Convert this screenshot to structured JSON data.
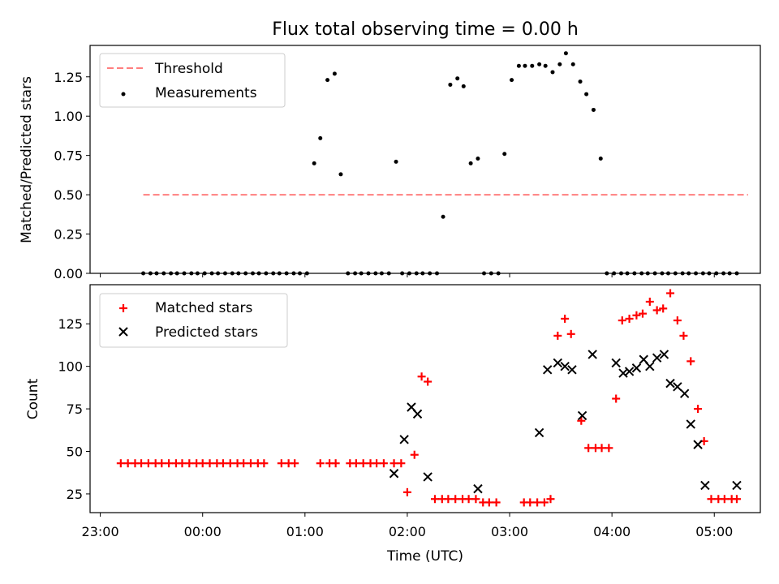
{
  "title": "Flux total observing time = 0.00 h",
  "colors": {
    "threshold": "#ff7f7f",
    "measurements": "#000000",
    "matched": "#ff0000",
    "predicted": "#000000"
  },
  "chart_data": [
    {
      "type": "scatter",
      "panel": "top",
      "ylabel": "Matched/Predicted stars",
      "ylim": [
        0,
        1.45
      ],
      "yticks": [
        0.0,
        0.25,
        0.5,
        0.75,
        1.0,
        1.25
      ],
      "yticklabels": [
        "0.00",
        "0.25",
        "0.50",
        "0.75",
        "1.00",
        "1.25"
      ],
      "xlim": [
        -0.1,
        6.45
      ],
      "legend": {
        "placement": "top-left"
      },
      "series": [
        {
          "name": "Threshold",
          "kind": "line",
          "style": "dashed",
          "x": [
            0.42,
            6.33
          ],
          "y": [
            0.5,
            0.5
          ]
        },
        {
          "name": "Measurements",
          "kind": "scatter",
          "x": [
            0.42,
            0.49,
            0.55,
            0.62,
            0.69,
            0.75,
            0.82,
            0.89,
            0.95,
            1.02,
            1.09,
            1.15,
            1.22,
            1.29,
            1.35,
            1.42,
            1.49,
            1.55,
            1.62,
            1.69,
            1.75,
            1.82,
            1.89,
            1.95,
            2.02,
            2.09,
            2.15,
            2.22,
            2.29,
            2.35,
            2.42,
            2.49,
            2.55,
            2.62,
            2.69,
            2.75,
            2.82,
            2.89,
            2.95,
            3.02,
            3.09,
            3.15,
            3.22,
            3.29,
            3.35,
            3.42,
            3.49,
            3.55,
            3.62,
            3.69,
            3.75,
            3.82,
            3.89,
            3.95,
            4.02,
            4.09,
            4.15,
            4.22,
            4.29,
            4.35,
            4.42,
            4.49,
            4.55,
            4.62,
            4.69,
            4.75,
            4.82,
            4.89,
            4.95,
            5.02,
            5.09,
            5.15,
            5.22,
            5.29,
            5.35,
            5.42,
            5.49,
            5.55,
            5.62,
            5.69,
            5.75,
            5.82,
            5.89,
            5.95,
            6.02,
            6.09,
            6.15,
            6.22
          ],
          "y": [
            0,
            0,
            0,
            0,
            0,
            0,
            0,
            0,
            0,
            0,
            0,
            0,
            0,
            0,
            0,
            0,
            0,
            0,
            0,
            0,
            0,
            0,
            0,
            0,
            0,
            0.7,
            0.86,
            1.23,
            1.27,
            0.63,
            0,
            0,
            0,
            0,
            0,
            0,
            0,
            0.71,
            0,
            0,
            0,
            0,
            0,
            0,
            0.36,
            1.2,
            1.24,
            1.19,
            0.7,
            0.73,
            0,
            0,
            0,
            0.76,
            1.23,
            1.32,
            1.32,
            1.32,
            1.33,
            1.32,
            1.28,
            1.33,
            1.4,
            1.33,
            1.22,
            1.14,
            1.04,
            0.73,
            0,
            0,
            0,
            0,
            0,
            0,
            0,
            0,
            0,
            0,
            0,
            0,
            0,
            0,
            0,
            0,
            0,
            0,
            0,
            0
          ]
        }
      ]
    },
    {
      "type": "scatter",
      "panel": "bottom",
      "xlabel": "Time (UTC)",
      "ylabel": "Count",
      "ylim": [
        14,
        148
      ],
      "yticks": [
        25,
        50,
        75,
        100,
        125
      ],
      "yticklabels": [
        "25",
        "50",
        "75",
        "100",
        "125"
      ],
      "xlim": [
        -0.1,
        6.45
      ],
      "xticks": [
        0,
        1,
        2,
        3,
        4,
        5,
        6
      ],
      "xticklabels": [
        "23:00",
        "00:00",
        "01:00",
        "02:00",
        "03:00",
        "04:00",
        "05:00"
      ],
      "legend": {
        "placement": "top-left"
      },
      "series": [
        {
          "name": "Matched stars",
          "kind": "scatter",
          "x": [
            0.2,
            0.27,
            0.34,
            0.4,
            0.47,
            0.54,
            0.6,
            0.67,
            0.74,
            0.8,
            0.87,
            0.94,
            1.0,
            1.07,
            1.14,
            1.2,
            1.27,
            1.34,
            1.4,
            1.47,
            1.54,
            1.6,
            1.77,
            1.84,
            1.9,
            2.15,
            2.24,
            2.3,
            2.44,
            2.5,
            2.57,
            2.64,
            2.7,
            2.77,
            2.87,
            2.94,
            3.0,
            3.07,
            3.14,
            3.2,
            3.27,
            3.34,
            3.4,
            3.47,
            3.54,
            3.6,
            3.67,
            3.74,
            3.8,
            3.87,
            4.14,
            4.2,
            4.27,
            4.34,
            4.4,
            4.47,
            4.54,
            4.6,
            4.7,
            4.77,
            4.84,
            4.9,
            4.97,
            5.04,
            5.1,
            5.17,
            5.24,
            5.3,
            5.37,
            5.44,
            5.5,
            5.57,
            5.64,
            5.7,
            5.77,
            5.84,
            5.9,
            5.97,
            6.04,
            6.1,
            6.17,
            6.22
          ],
          "y": [
            43,
            43,
            43,
            43,
            43,
            43,
            43,
            43,
            43,
            43,
            43,
            43,
            43,
            43,
            43,
            43,
            43,
            43,
            43,
            43,
            43,
            43,
            43,
            43,
            43,
            43,
            43,
            43,
            43,
            43,
            43,
            43,
            43,
            43,
            43,
            43,
            26,
            48,
            94,
            91,
            22,
            22,
            22,
            22,
            22,
            22,
            22,
            20,
            20,
            20,
            20,
            20,
            20,
            20,
            22,
            118,
            128,
            119,
            68,
            52,
            52,
            52,
            52,
            81,
            127,
            128,
            130,
            131,
            138,
            133,
            134,
            143,
            127,
            118,
            103,
            75,
            56,
            22,
            22,
            22,
            22,
            22
          ]
        },
        {
          "name": "Predicted stars",
          "kind": "scatter",
          "x": [
            2.87,
            2.97,
            3.04,
            3.1,
            3.2,
            3.69,
            4.29,
            4.37,
            4.47,
            4.54,
            4.61,
            4.71,
            4.81,
            5.04,
            5.11,
            5.17,
            5.24,
            5.31,
            5.37,
            5.44,
            5.51,
            5.57,
            5.64,
            5.71,
            5.77,
            5.84,
            5.91,
            6.22
          ],
          "y": [
            37,
            57,
            76,
            72,
            35,
            28,
            61,
            98,
            102,
            100,
            98,
            71,
            107,
            102,
            96,
            97,
            99,
            104,
            100,
            105,
            107,
            90,
            88,
            84,
            66,
            54,
            30,
            30
          ]
        }
      ]
    }
  ]
}
